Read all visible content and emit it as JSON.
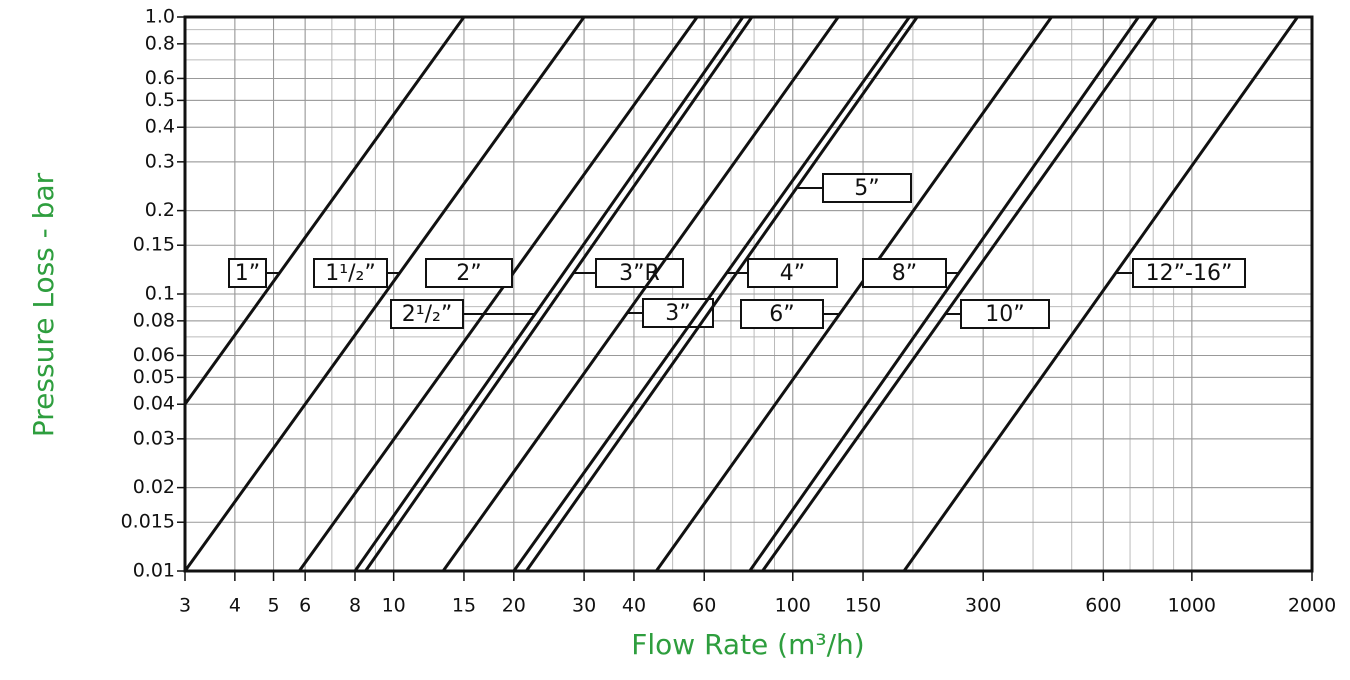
{
  "chart_data": {
    "type": "line",
    "log_x": true,
    "log_y": true,
    "grid": true,
    "x_label": "Flow Rate (m³/h)",
    "y_label": "Pressure Loss - bar",
    "xlim": [
      3,
      2000
    ],
    "ylim": [
      0.01,
      1
    ],
    "xticks": [
      3,
      4,
      5,
      6,
      8,
      10,
      15,
      20,
      30,
      40,
      60,
      100,
      150,
      300,
      600,
      1000,
      2000
    ],
    "yticks": [
      0.01,
      0.015,
      0.02,
      0.03,
      0.04,
      0.05,
      0.06,
      0.08,
      0.1,
      0.15,
      0.2,
      0.3,
      0.4,
      0.5,
      0.6,
      0.8,
      {
        "value": 1,
        "label": "1.0"
      }
    ],
    "series": [
      {
        "name": "1”",
        "color": "#111111",
        "x": [
          3,
          15
        ],
        "values": [
          0.04,
          1
        ]
      },
      {
        "name": "1¹/₂”",
        "color": "#111111",
        "x": [
          3,
          30
        ],
        "values": [
          0.01,
          1
        ]
      },
      {
        "name": "2”",
        "color": "#111111",
        "x": [
          5.8,
          57.6
        ],
        "values": [
          0.01,
          1
        ]
      },
      {
        "name": "2¹/₂”",
        "color": "#111111",
        "x": [
          8,
          75
        ],
        "values": [
          0.01,
          1
        ]
      },
      {
        "name": "3”R",
        "color": "#111111",
        "x": [
          8.5,
          79
        ],
        "values": [
          0.01,
          1
        ]
      },
      {
        "name": "3”",
        "color": "#111111",
        "x": [
          13.3,
          130
        ],
        "values": [
          0.01,
          1
        ]
      },
      {
        "name": "4”",
        "color": "#111111",
        "x": [
          20,
          196
        ],
        "values": [
          0.01,
          1
        ]
      },
      {
        "name": "5”",
        "color": "#111111",
        "x": [
          21.5,
          205
        ],
        "values": [
          0.01,
          1
        ]
      },
      {
        "name": "6”",
        "color": "#111111",
        "x": [
          45.5,
          445
        ],
        "values": [
          0.01,
          1
        ]
      },
      {
        "name": "8”",
        "color": "#111111",
        "x": [
          78,
          735
        ],
        "values": [
          0.01,
          1
        ]
      },
      {
        "name": "10”",
        "color": "#111111",
        "x": [
          84,
          815
        ],
        "values": [
          0.01,
          1
        ]
      },
      {
        "name": "12”-16”",
        "color": "#111111",
        "x": [
          190,
          1840
        ],
        "values": [
          0.01,
          1
        ]
      }
    ]
  }
}
